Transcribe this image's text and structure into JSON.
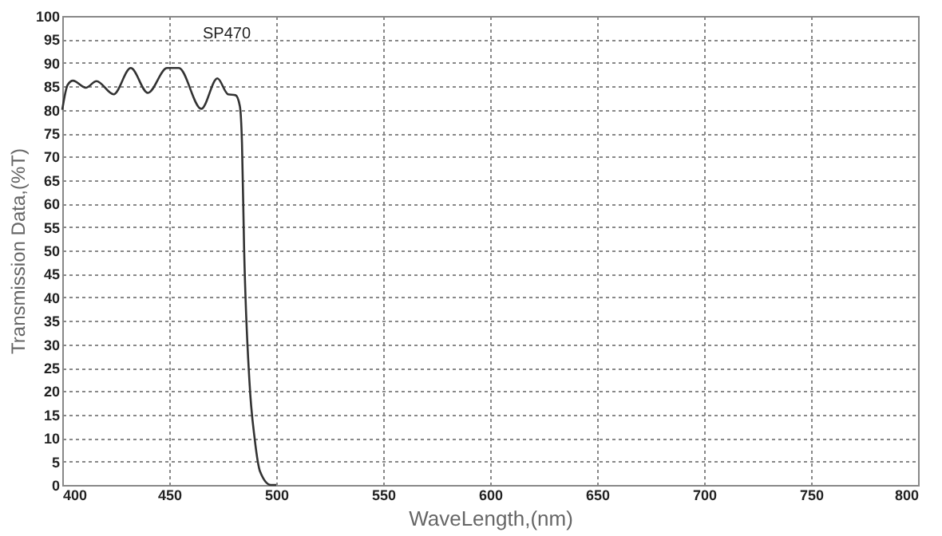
{
  "chart_data": {
    "type": "line",
    "xlabel": "WaveLength,(nm)",
    "ylabel": "Transmission Data,(%T)",
    "x": [
      400,
      402.5,
      405,
      411,
      416,
      424,
      432,
      440,
      449,
      454.5,
      465,
      472.5,
      477.5,
      481,
      483,
      484,
      485,
      487.5,
      490,
      492.5,
      497.5,
      500
    ],
    "series": [
      {
        "color": "#333333",
        "values": [
          80,
          85.3,
          86.2,
          84.7,
          86.1,
          83.3,
          88.9,
          83.6,
          88.9,
          88.9,
          80.2,
          86.7,
          83.3,
          83.1,
          80.8,
          72.9,
          50.3,
          22,
          9.6,
          2.8,
          0,
          0
        ]
      }
    ],
    "annotations": [
      "SP470"
    ],
    "xlim": [
      400,
      800
    ],
    "xticks": [
      400,
      450,
      500,
      550,
      600,
      650,
      700,
      750,
      800
    ],
    "ylim": [
      0,
      100
    ],
    "yticks": [
      0,
      5,
      10,
      15,
      20,
      25,
      30,
      35,
      40,
      45,
      50,
      55,
      60,
      65,
      70,
      75,
      80,
      85,
      90,
      95,
      100
    ],
    "grid": true,
    "marker": "none",
    "line_style": "solid"
  }
}
